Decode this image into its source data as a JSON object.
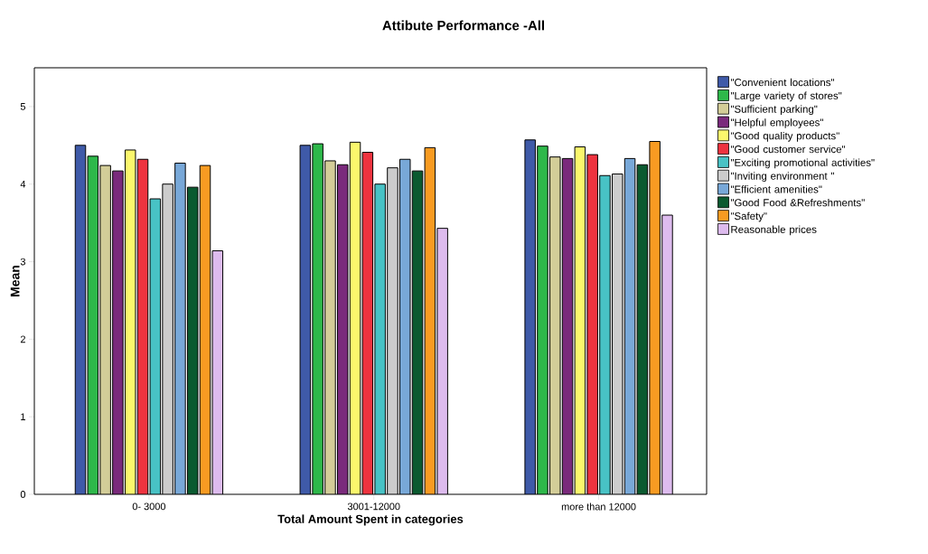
{
  "chart_data": {
    "type": "bar",
    "title": "Attibute Performance -All",
    "xlabel": "Total Amount Spent in categories",
    "ylabel": "Mean",
    "categories": [
      "0- 3000",
      "3001-12000",
      "more than 12000"
    ],
    "series": [
      {
        "name": "\"Convenient locations\"",
        "color": "#3f5aa8",
        "values": [
          4.5,
          4.5,
          4.57
        ]
      },
      {
        "name": "\"Large variety of stores\"",
        "color": "#2eb84a",
        "values": [
          4.36,
          4.52,
          4.49
        ]
      },
      {
        "name": "\"Sufficient parking\"",
        "color": "#d3cd98",
        "values": [
          4.24,
          4.3,
          4.35
        ]
      },
      {
        "name": "\"Helpful employees\"",
        "color": "#7a2a7c",
        "values": [
          4.17,
          4.25,
          4.33
        ]
      },
      {
        "name": "\"Good quality products\"",
        "color": "#fbf76c",
        "values": [
          4.44,
          4.54,
          4.48
        ]
      },
      {
        "name": "\"Good customer service\"",
        "color": "#ee333f",
        "values": [
          4.32,
          4.41,
          4.38
        ]
      },
      {
        "name": "\"Exciting promotional activities\"",
        "color": "#48c2c5",
        "values": [
          3.81,
          4.0,
          4.11
        ]
      },
      {
        "name": "\"Inviting environment \"",
        "color": "#cccccc",
        "values": [
          4.0,
          4.21,
          4.13
        ]
      },
      {
        "name": "\"Efficient amenities\"",
        "color": "#78a8d8",
        "values": [
          4.27,
          4.32,
          4.33
        ]
      },
      {
        "name": "\"Good Food &Refreshments\"",
        "color": "#0b5a30",
        "values": [
          3.96,
          4.17,
          4.25
        ]
      },
      {
        "name": "\"Safety\"",
        "color": "#f89b22",
        "values": [
          4.24,
          4.47,
          4.55
        ]
      },
      {
        "name": "Reasonable prices",
        "color": "#ddbbee",
        "values": [
          3.14,
          3.43,
          3.6
        ]
      }
    ],
    "ylim": [
      0,
      5.5
    ],
    "yticks": [
      0,
      1,
      2,
      3,
      4,
      5
    ],
    "legend": "right"
  }
}
